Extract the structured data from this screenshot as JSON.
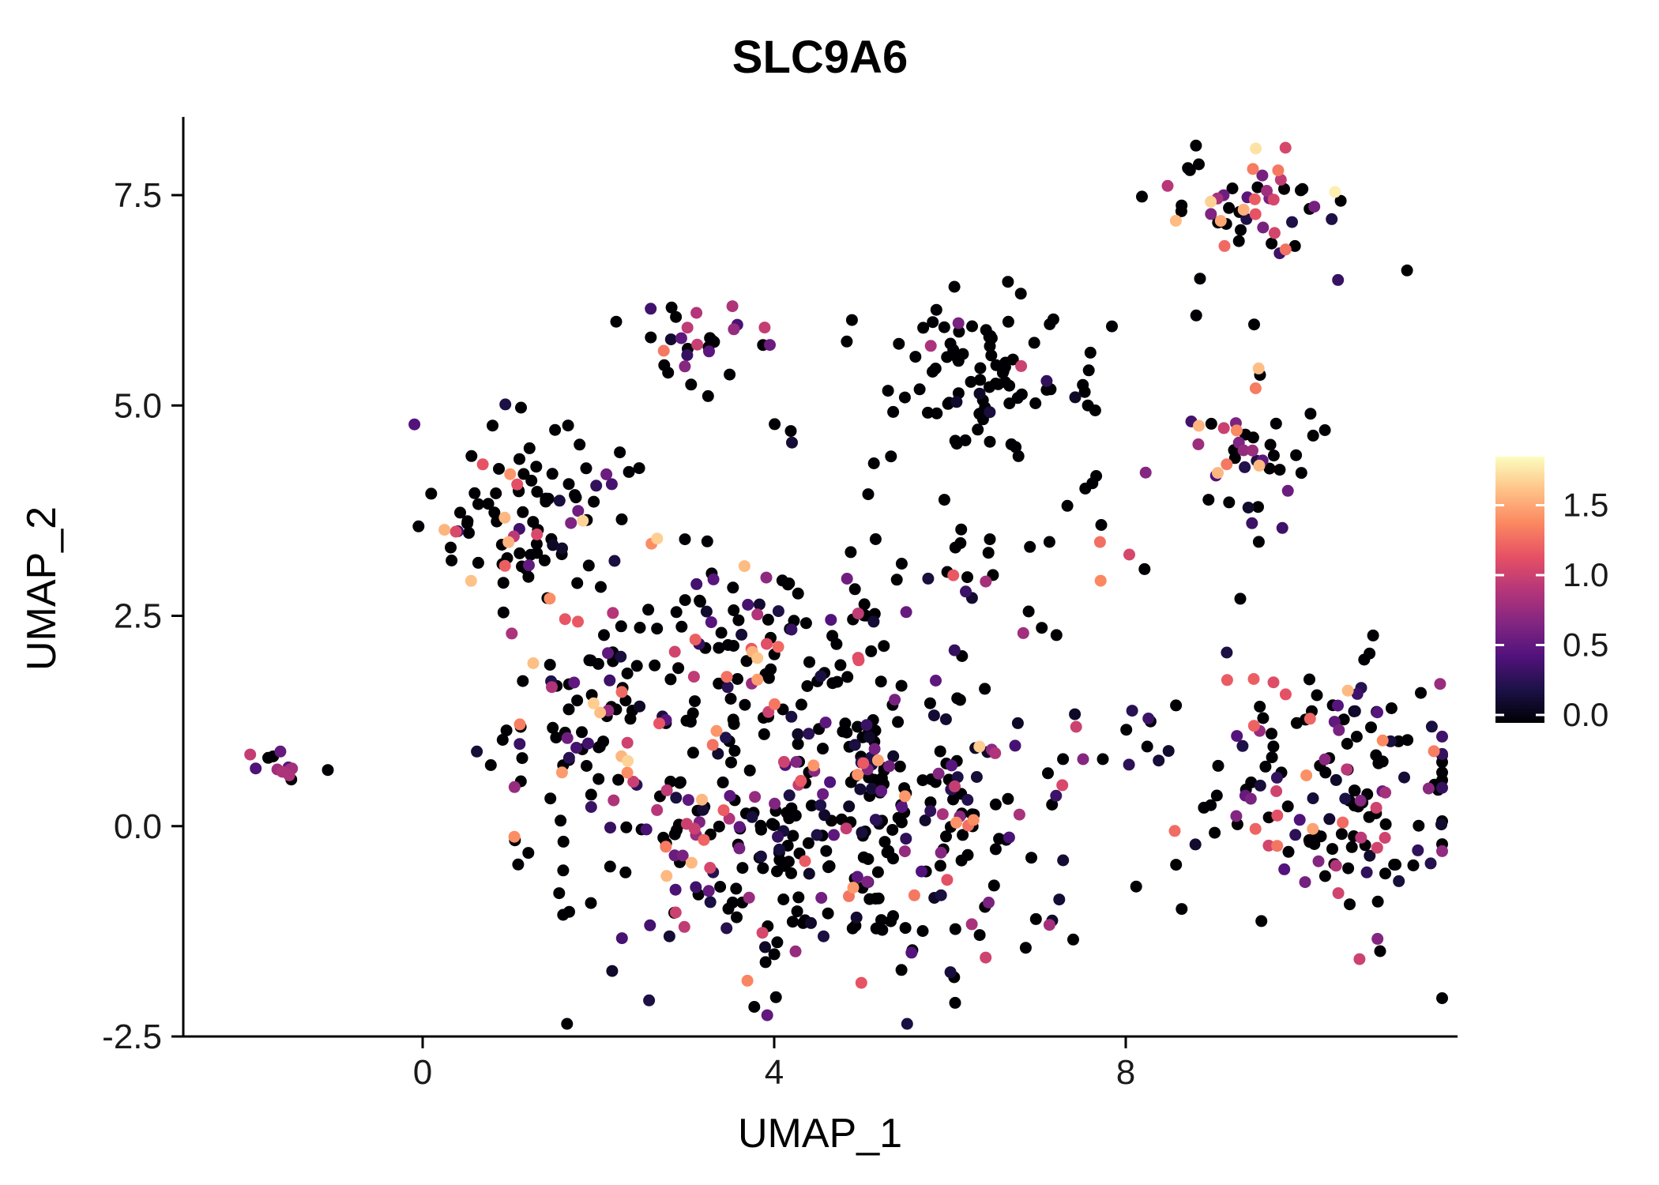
{
  "chart_data": {
    "type": "scatter",
    "title": "SLC9A6",
    "xlabel": "UMAP_1",
    "ylabel": "UMAP_2",
    "xlim": [
      -2.7,
      11.8
    ],
    "ylim": [
      -2.5,
      8.4
    ],
    "grid": false,
    "legend_position": "right",
    "x_ticks": [
      {
        "value": 0,
        "label": "0"
      },
      {
        "value": 4,
        "label": "4"
      },
      {
        "value": 8,
        "label": "8"
      }
    ],
    "y_ticks": [
      {
        "value": -2.5,
        "label": "-2.5"
      },
      {
        "value": 0.0,
        "label": "0.0"
      },
      {
        "value": 2.5,
        "label": "2.5"
      },
      {
        "value": 5.0,
        "label": "5.0"
      },
      {
        "value": 7.5,
        "label": "7.5"
      }
    ],
    "color_scale": {
      "name": "magma",
      "domain": [
        0,
        1.85
      ],
      "palette": [
        "#000004",
        "#1d1147",
        "#51127c",
        "#822681",
        "#b63679",
        "#e65164",
        "#fb8861",
        "#fec287",
        "#fcfdbf"
      ],
      "zero_color": "#000004"
    },
    "clusters": [
      {
        "name": "top-right",
        "n": 52,
        "cx": 9.45,
        "cy": 7.4,
        "sx": 0.55,
        "sy": 0.33,
        "p_zero": 0.42,
        "e_max": 1.8,
        "e_pow": 1.4
      },
      {
        "name": "top-right-stragglers",
        "n": 5,
        "cx": 9.0,
        "cy": 6.5,
        "sx": 0.7,
        "sy": 0.35,
        "p_zero": 0.8,
        "e_max": 1.2,
        "e_pow": 2.0
      },
      {
        "name": "upper-small",
        "n": 24,
        "cx": 3.15,
        "cy": 5.85,
        "sx": 0.3,
        "sy": 0.22,
        "p_zero": 0.4,
        "e_max": 1.45,
        "e_pow": 1.2
      },
      {
        "name": "upper-small-trail",
        "n": 9,
        "cx": 3.8,
        "cy": 5.1,
        "sx": 0.7,
        "sy": 0.3,
        "p_zero": 0.65,
        "e_max": 1.2,
        "e_pow": 1.5
      },
      {
        "name": "top-middle",
        "n": 85,
        "cx": 6.4,
        "cy": 5.3,
        "sx": 0.6,
        "sy": 0.5,
        "p_zero": 0.84,
        "e_max": 1.7,
        "e_pow": 2.0
      },
      {
        "name": "right-upper",
        "n": 42,
        "cx": 9.35,
        "cy": 4.35,
        "sx": 0.42,
        "sy": 0.38,
        "p_zero": 0.45,
        "e_max": 1.7,
        "e_pow": 1.2
      },
      {
        "name": "left",
        "n": 95,
        "cx": 1.25,
        "cy": 3.75,
        "sx": 0.55,
        "sy": 0.62,
        "p_zero": 0.66,
        "e_max": 1.7,
        "e_pow": 1.8
      },
      {
        "name": "far-left",
        "n": 13,
        "cx": -1.55,
        "cy": 0.72,
        "sx": 0.28,
        "sy": 0.1,
        "p_zero": 0.45,
        "e_max": 1.6,
        "e_pow": 1.4
      },
      {
        "name": "central",
        "n": 430,
        "cx": 4.6,
        "cy": 0.15,
        "sx": 1.5,
        "sy": 1.0,
        "p_zero": 0.52,
        "e_max": 1.7,
        "e_pow": 1.8
      },
      {
        "name": "central-upper-arm",
        "n": 75,
        "cx": 3.7,
        "cy": 2.45,
        "sx": 1.05,
        "sy": 0.5,
        "p_zero": 0.7,
        "e_max": 1.6,
        "e_pow": 1.8
      },
      {
        "name": "left-arm",
        "n": 55,
        "cx": 1.75,
        "cy": 1.35,
        "sx": 0.5,
        "sy": 0.6,
        "p_zero": 0.6,
        "e_max": 1.7,
        "e_pow": 1.6
      },
      {
        "name": "right",
        "n": 155,
        "cx": 10.35,
        "cy": 0.55,
        "sx": 0.8,
        "sy": 0.85,
        "p_zero": 0.54,
        "e_max": 1.7,
        "e_pow": 1.6
      },
      {
        "name": "bridge-upper",
        "n": 35,
        "cx": 6.4,
        "cy": 3.3,
        "sx": 1.0,
        "sy": 0.7,
        "p_zero": 0.8,
        "e_max": 1.5,
        "e_pow": 2.0
      },
      {
        "name": "bridge-right",
        "n": 10,
        "cx": 8.3,
        "cy": 1.4,
        "sx": 0.5,
        "sy": 0.6,
        "p_zero": 0.7,
        "e_max": 1.4,
        "e_pow": 2.0
      }
    ]
  },
  "legend": {
    "ticks": [
      {
        "value": 1.5,
        "label": "1.5"
      },
      {
        "value": 1.0,
        "label": "1.0"
      },
      {
        "value": 0.5,
        "label": "0.5"
      },
      {
        "value": 0.0,
        "label": "0.0"
      }
    ]
  },
  "colors": {
    "background": "#ffffff",
    "axis": "#000000",
    "text": "#1a1a1a"
  }
}
